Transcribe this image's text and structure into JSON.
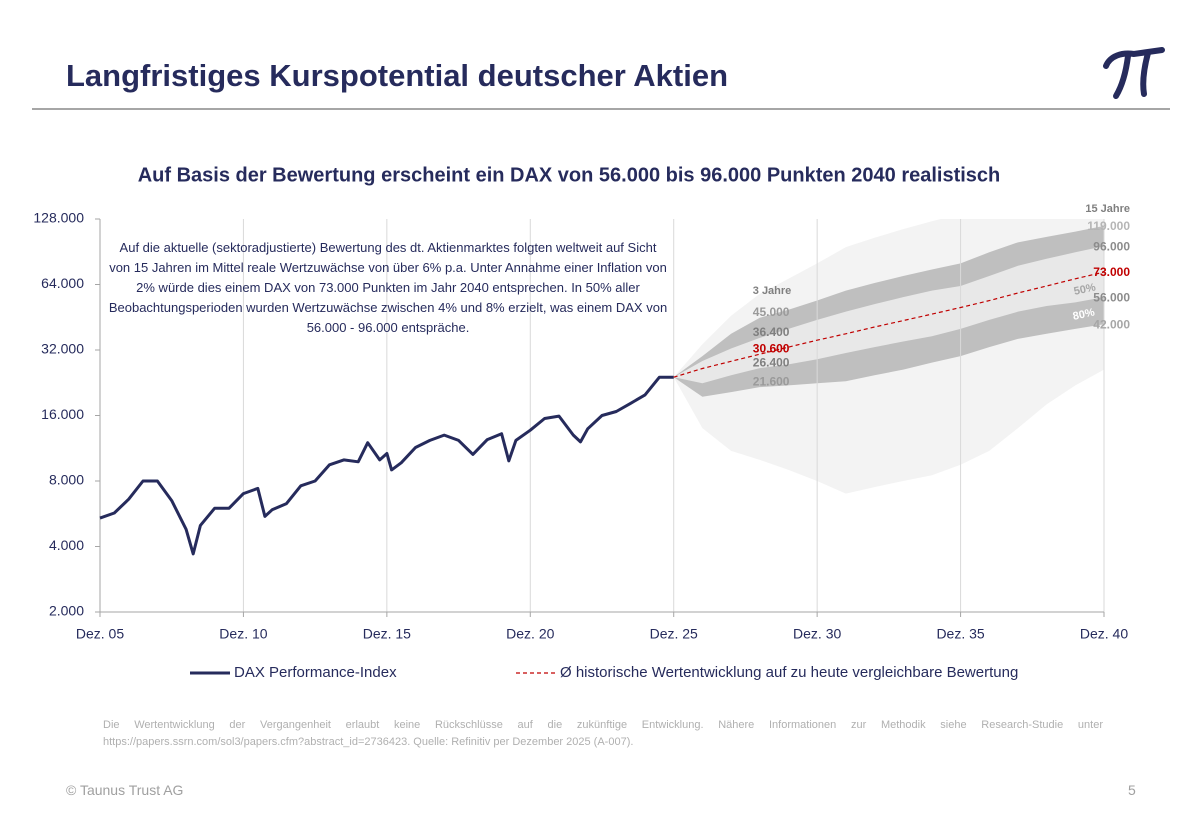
{
  "header": {
    "title": "Langfristiges Kurspotential deutscher Aktien"
  },
  "chart_data": {
    "type": "line",
    "title": "Auf Basis der Bewertung erscheint ein DAX von 56.000 bis 96.000 Punkten 2040 realistisch",
    "annotation": "Auf die aktuelle (sektoradjustierte) Bewertung des dt. Aktienmarktes folgten weltweit auf Sicht von 15 Jahren im Mittel reale Wertzuwächse von über 6% p.a. Unter Annahme einer Inflation von 2% würde dies einem DAX von 73.000 Punkten im Jahr 2040 entsprechen. In 50% aller Beobachtungsperioden wurden Wertzuwächse zwischen 4% und 8% erzielt, was einem DAX von 56.000 - 96.000 entspräche.",
    "y_scale": "log",
    "ylim": [
      2000,
      128000
    ],
    "yticks": [
      {
        "value": 2000,
        "label": "2.000"
      },
      {
        "value": 4000,
        "label": "4.000"
      },
      {
        "value": 8000,
        "label": "8.000"
      },
      {
        "value": 16000,
        "label": "16.000"
      },
      {
        "value": 32000,
        "label": "32.000"
      },
      {
        "value": 64000,
        "label": "64.000"
      },
      {
        "value": 128000,
        "label": "128.000"
      }
    ],
    "xlim": [
      "2005-12",
      "2040-12"
    ],
    "xticks": [
      {
        "value": "2005-12",
        "label": "Dez. 05"
      },
      {
        "value": "2010-12",
        "label": "Dez. 10"
      },
      {
        "value": "2015-12",
        "label": "Dez. 15"
      },
      {
        "value": "2020-12",
        "label": "Dez. 20"
      },
      {
        "value": "2025-12",
        "label": "Dez. 25"
      },
      {
        "value": "2030-12",
        "label": "Dez. 30"
      },
      {
        "value": "2035-12",
        "label": "Dez. 35"
      },
      {
        "value": "2040-12",
        "label": "Dez. 40"
      }
    ],
    "grid": "x",
    "series": [
      {
        "name": "DAX Performance-Index",
        "color": "#262b5c",
        "x": [
          "2005-12",
          "2006-06",
          "2006-12",
          "2007-06",
          "2007-12",
          "2008-06",
          "2008-12",
          "2009-03",
          "2009-06",
          "2009-12",
          "2010-06",
          "2010-12",
          "2011-06",
          "2011-09",
          "2011-12",
          "2012-06",
          "2012-12",
          "2013-06",
          "2013-12",
          "2014-06",
          "2014-12",
          "2015-04",
          "2015-09",
          "2015-12",
          "2016-02",
          "2016-06",
          "2016-12",
          "2017-06",
          "2017-12",
          "2018-06",
          "2018-12",
          "2019-06",
          "2019-12",
          "2020-03",
          "2020-06",
          "2020-12",
          "2021-06",
          "2021-12",
          "2022-06",
          "2022-09",
          "2022-12",
          "2023-06",
          "2023-12",
          "2024-06",
          "2024-12",
          "2025-06",
          "2025-12"
        ],
        "values": [
          5400,
          5700,
          6600,
          8000,
          8000,
          6500,
          4800,
          3700,
          5000,
          6000,
          6000,
          7000,
          7400,
          5500,
          5900,
          6300,
          7600,
          8000,
          9500,
          10000,
          9800,
          12000,
          10000,
          10700,
          9000,
          9700,
          11400,
          12300,
          13000,
          12300,
          10600,
          12400,
          13200,
          9900,
          12300,
          13700,
          15500,
          15900,
          13000,
          12100,
          13900,
          16000,
          16700,
          18200,
          19900,
          24000,
          24000
        ]
      },
      {
        "name": "Ø historische Wertentwicklung auf zu heute vergleichbare Bewertung",
        "color": "#c00000",
        "dashed": true,
        "x": [
          "2025-12",
          "2026-12",
          "2027-12",
          "2028-12",
          "2029-12",
          "2030-12",
          "2031-12",
          "2032-12",
          "2033-12",
          "2034-12",
          "2035-12",
          "2036-12",
          "2037-12",
          "2038-12",
          "2039-12",
          "2040-12"
        ],
        "values": [
          24000,
          26300,
          28400,
          30600,
          33000,
          35500,
          38000,
          40800,
          43700,
          46800,
          50200,
          54000,
          58500,
          63000,
          68000,
          73000
        ]
      }
    ],
    "projection_x": [
      "2025-12",
      "2026-12",
      "2027-12",
      "2028-12",
      "2029-12",
      "2030-12",
      "2031-12",
      "2032-12",
      "2033-12",
      "2034-12",
      "2035-12",
      "2036-12",
      "2037-12",
      "2038-12",
      "2039-12",
      "2040-12"
    ],
    "bands": [
      {
        "color": "#f3f3f3",
        "lower": [
          24000,
          14000,
          11000,
          10000,
          9000,
          8000,
          7000,
          7500,
          8000,
          8500,
          9500,
          11000,
          14000,
          18000,
          22000,
          26000
        ],
        "upper": [
          24000,
          34000,
          46000,
          58000,
          68000,
          80000,
          95000,
          105000,
          115000,
          125000,
          135000,
          140000,
          145000,
          150000,
          150000,
          150000
        ]
      },
      {
        "color": "#bfbfbf",
        "lower": [
          24000,
          19500,
          20500,
          21600,
          22000,
          22500,
          23000,
          24500,
          26000,
          28000,
          30000,
          33000,
          36000,
          38000,
          40000,
          42000
        ],
        "upper": [
          24000,
          30000,
          38000,
          45000,
          49000,
          54000,
          60000,
          65000,
          70000,
          75000,
          80000,
          90000,
          100000,
          106000,
          112000,
          119000
        ]
      },
      {
        "color": "#e8e8e8",
        "lower": [
          24000,
          22500,
          24500,
          26400,
          27500,
          29000,
          31000,
          33000,
          35000,
          37000,
          40000,
          44000,
          48000,
          51000,
          53000,
          56000
        ],
        "upper": [
          24000,
          28500,
          32500,
          36400,
          40000,
          44000,
          48000,
          52000,
          56000,
          60000,
          63000,
          70000,
          78000,
          84000,
          90000,
          96000
        ]
      }
    ],
    "band_labels": [
      "50%",
      "80%"
    ],
    "horizons": [
      {
        "title": "3 Jahre",
        "x": "2028-12",
        "labels": [
          {
            "value": 45000,
            "label": "45.000",
            "color": "#9a9a9a"
          },
          {
            "value": 36400,
            "label": "36.400",
            "color": "#7f7f7f"
          },
          {
            "value": 30600,
            "label": "30.600",
            "color": "#c00000"
          },
          {
            "value": 26400,
            "label": "26.400",
            "color": "#7f7f7f"
          },
          {
            "value": 21600,
            "label": "21.600",
            "color": "#9a9a9a"
          }
        ]
      },
      {
        "title": "15 Jahre",
        "x": "2040-12",
        "labels": [
          {
            "value": 119000,
            "label": "119.000",
            "color": "#b5b5b5"
          },
          {
            "value": 96000,
            "label": "96.000",
            "color": "#8c8c8c"
          },
          {
            "value": 73000,
            "label": "73.000",
            "color": "#c00000"
          },
          {
            "value": 56000,
            "label": "56.000",
            "color": "#8c8c8c"
          },
          {
            "value": 42000,
            "label": "42.000",
            "color": "#a6a6a6"
          }
        ]
      }
    ]
  },
  "footer": {
    "disclaimer": "Die Wertentwicklung der Vergangenheit erlaubt keine Rückschlüsse auf die zukünftige Entwicklung. Nähere Informationen zur Methodik siehe Research-Studie unter https://papers.ssrn.com/sol3/papers.cfm?abstract_id=2736423. Quelle: Refinitiv per Dezember 2025 (A-007).",
    "copyright": "© Taunus Trust AG",
    "page": "5"
  }
}
